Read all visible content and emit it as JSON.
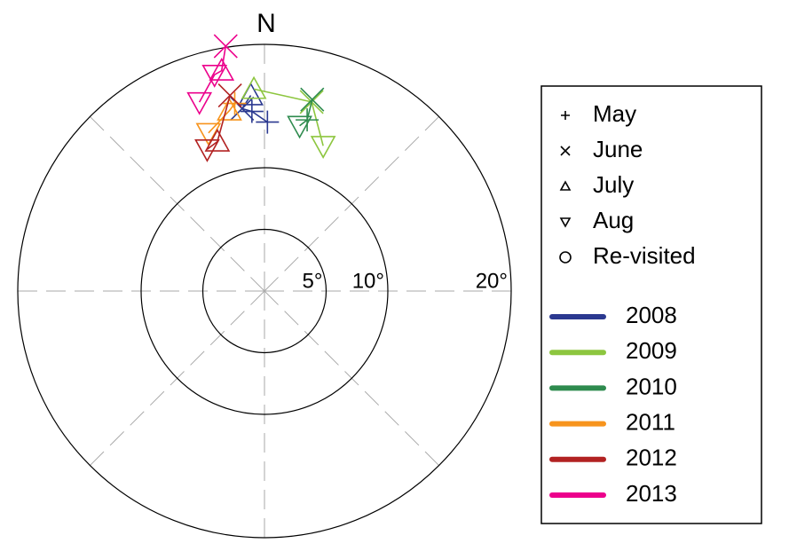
{
  "chart_data": {
    "type": "polar-scatter",
    "direction_label": "N",
    "rlim": [
      0,
      20
    ],
    "rticks": [
      {
        "value": 5,
        "label": "5°"
      },
      {
        "value": 10,
        "label": "10°"
      },
      {
        "value": 20,
        "label": "20°"
      }
    ],
    "markers": [
      {
        "label": "May",
        "symbol": "plus"
      },
      {
        "label": "June",
        "symbol": "cross"
      },
      {
        "label": "July",
        "symbol": "triangle-up"
      },
      {
        "label": "Aug",
        "symbol": "triangle-down"
      },
      {
        "label": "Re-visited",
        "symbol": "circle"
      }
    ],
    "series": [
      {
        "name": "2008",
        "color": "#2b3990",
        "azimuth": [
          -4,
          -7,
          -4,
          1
        ],
        "tilt": [
          15.9,
          14.9,
          14.6,
          13.7
        ],
        "month": [
          2,
          1,
          0,
          0
        ]
      },
      {
        "name": "2009",
        "color": "#8dc63f",
        "azimuth": [
          -3,
          14,
          22
        ],
        "tilt": [
          16.4,
          15.8,
          12.7
        ],
        "month": [
          2,
          1,
          3
        ]
      },
      {
        "name": "2010",
        "color": "#2e8b4e",
        "azimuth": [
          14,
          14,
          12
        ],
        "tilt": [
          16.0,
          14.3,
          13.7
        ],
        "month": [
          1,
          0,
          3
        ]
      },
      {
        "name": "2011",
        "color": "#f7941d",
        "azimuth": [
          -9,
          -11,
          -19.5
        ],
        "tilt": [
          15.4,
          14.9,
          13.6
        ],
        "month": [
          0,
          2,
          3
        ]
      },
      {
        "name": "2012",
        "color": "#b22222",
        "azimuth": [
          -10,
          -17.5,
          -22
        ],
        "tilt": [
          16.1,
          12.7,
          12.4
        ],
        "month": [
          1,
          2,
          3
        ]
      },
      {
        "name": "2013",
        "color": "#ec008c",
        "azimuth": [
          -9,
          -11,
          -13,
          -19
        ],
        "tilt": [
          20.1,
          18.2,
          18.0,
          16.2
        ],
        "month": [
          1,
          2,
          3,
          3
        ]
      }
    ]
  }
}
